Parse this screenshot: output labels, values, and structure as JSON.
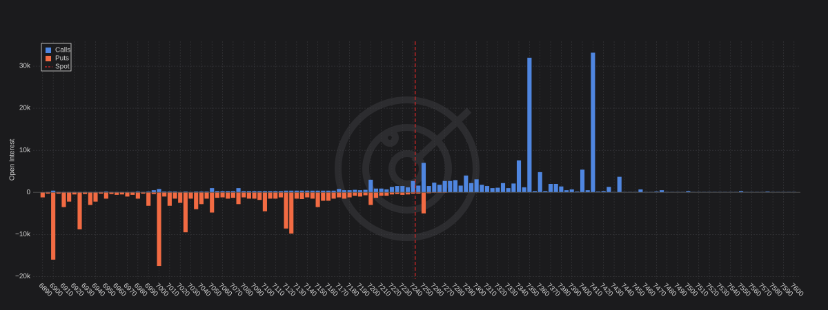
{
  "chart_data": {
    "type": "bar",
    "ylabel": "Open Interest",
    "x": [
      6890,
      6895,
      6900,
      6905,
      6910,
      6915,
      6920,
      6925,
      6930,
      6935,
      6940,
      6945,
      6950,
      6955,
      6960,
      6965,
      6970,
      6975,
      6980,
      6985,
      6990,
      6995,
      7000,
      7005,
      7010,
      7015,
      7020,
      7025,
      7030,
      7035,
      7040,
      7045,
      7050,
      7055,
      7060,
      7065,
      7070,
      7075,
      7080,
      7085,
      7090,
      7095,
      7100,
      7105,
      7110,
      7115,
      7120,
      7125,
      7130,
      7135,
      7140,
      7145,
      7150,
      7155,
      7160,
      7165,
      7170,
      7175,
      7180,
      7185,
      7190,
      7195,
      7200,
      7205,
      7210,
      7215,
      7220,
      7225,
      7230,
      7235,
      7240,
      7245,
      7250,
      7255,
      7260,
      7265,
      7270,
      7275,
      7280,
      7285,
      7290,
      7295,
      7300,
      7305,
      7310,
      7315,
      7320,
      7325,
      7330,
      7335,
      7340,
      7345,
      7350,
      7355,
      7360,
      7365,
      7370,
      7375,
      7380,
      7385,
      7390,
      7395,
      7400,
      7405,
      7410,
      7415,
      7420,
      7425,
      7430,
      7435,
      7440,
      7445,
      7450,
      7455,
      7460,
      7465,
      7470,
      7475,
      7480,
      7485,
      7490,
      7495,
      7500,
      7505,
      7510,
      7515,
      7520,
      7525,
      7530,
      7535,
      7540,
      7545,
      7550,
      7555,
      7560,
      7565,
      7570,
      7575,
      7580,
      7585,
      7590,
      7595,
      7600
    ],
    "series": [
      {
        "name": "Calls",
        "color": "#4f86e0",
        "values": [
          0,
          100,
          400,
          100,
          100,
          100,
          100,
          100,
          100,
          100,
          100,
          100,
          200,
          100,
          100,
          100,
          100,
          100,
          200,
          100,
          200,
          500,
          800,
          200,
          200,
          200,
          100,
          200,
          100,
          200,
          200,
          200,
          1000,
          300,
          300,
          300,
          300,
          1000,
          300,
          300,
          300,
          300,
          300,
          300,
          300,
          300,
          400,
          400,
          400,
          400,
          400,
          400,
          400,
          400,
          400,
          400,
          800,
          500,
          500,
          600,
          500,
          600,
          3000,
          900,
          900,
          700,
          1300,
          1500,
          1500,
          1200,
          2700,
          1600,
          7000,
          1500,
          2300,
          1800,
          2700,
          2700,
          2900,
          1600,
          4000,
          2200,
          3100,
          1800,
          1500,
          1000,
          1100,
          2200,
          1000,
          2100,
          7600,
          1200,
          32000,
          300,
          4800,
          300,
          2000,
          2000,
          1400,
          500,
          700,
          200,
          5400,
          500,
          33200,
          200,
          300,
          1300,
          100,
          3700,
          100,
          100,
          100,
          700,
          100,
          100,
          200,
          500,
          100,
          100,
          100,
          100,
          300,
          100,
          100,
          100,
          100,
          100,
          100,
          100,
          100,
          100,
          300,
          100,
          100,
          100,
          100,
          200,
          100,
          100,
          100,
          100,
          100
        ]
      },
      {
        "name": "Puts",
        "color": "#f26b43",
        "values": [
          -1200,
          -300,
          -16000,
          -300,
          -3500,
          -2200,
          -500,
          -8800,
          -400,
          -3000,
          -2200,
          -300,
          -1500,
          -400,
          -600,
          -500,
          -1000,
          -600,
          -1500,
          -300,
          -3200,
          -400,
          -17500,
          -1000,
          -3200,
          -1500,
          -2500,
          -9500,
          -1500,
          -4000,
          -2800,
          -1500,
          -4800,
          -1300,
          -1200,
          -1500,
          -1300,
          -2800,
          -1200,
          -1500,
          -1500,
          -1800,
          -4500,
          -1500,
          -1500,
          -1200,
          -8600,
          -9800,
          -1500,
          -1600,
          -1200,
          -1500,
          -3500,
          -2000,
          -2000,
          -1500,
          -1200,
          -1500,
          -1200,
          -800,
          -1000,
          -700,
          -3000,
          -1300,
          -800,
          -800,
          -500,
          -400,
          -600,
          -500,
          -300,
          -300,
          -5000,
          -200,
          -100,
          -100,
          -100,
          -50,
          -50,
          -50,
          -50,
          0,
          -50,
          0,
          0,
          0,
          0,
          0,
          0,
          0,
          0,
          0,
          0,
          0,
          0,
          0,
          0,
          0,
          0,
          0,
          0,
          0,
          0,
          0,
          0,
          0,
          0,
          0,
          0,
          0,
          0,
          0,
          0,
          0,
          0,
          0,
          0,
          0,
          0,
          0,
          0,
          0,
          0,
          0,
          0,
          0,
          0,
          0,
          0,
          0,
          0,
          0,
          0,
          0,
          0,
          0,
          0,
          0,
          0,
          0,
          0,
          0,
          0
        ]
      }
    ],
    "spot": {
      "name": "Spot",
      "color": "#d62728",
      "value": 7242
    },
    "xlim": [
      6881,
      7606
    ],
    "xticks": [
      6890,
      6900,
      6910,
      6920,
      6930,
      6940,
      6950,
      6960,
      6970,
      6980,
      6990,
      7000,
      7010,
      7020,
      7030,
      7040,
      7050,
      7060,
      7070,
      7080,
      7090,
      7100,
      7110,
      7120,
      7130,
      7140,
      7150,
      7160,
      7170,
      7180,
      7190,
      7200,
      7210,
      7220,
      7230,
      7240,
      7250,
      7260,
      7270,
      7280,
      7290,
      7300,
      7310,
      7320,
      7330,
      7340,
      7350,
      7360,
      7370,
      7380,
      7390,
      7400,
      7410,
      7420,
      7430,
      7440,
      7450,
      7460,
      7470,
      7480,
      7490,
      7500,
      7510,
      7520,
      7530,
      7540,
      7550,
      7560,
      7570,
      7580,
      7590,
      7600
    ],
    "ylim": [
      -20600,
      35900
    ],
    "yticks": [
      {
        "value": -20000,
        "label": "−20k"
      },
      {
        "value": -10000,
        "label": "−10k"
      },
      0,
      {
        "value": 10000,
        "label": "10k"
      },
      {
        "value": 20000,
        "label": "20k"
      },
      {
        "value": 30000,
        "label": "30k"
      }
    ],
    "grid": true,
    "legend": "top-left"
  }
}
